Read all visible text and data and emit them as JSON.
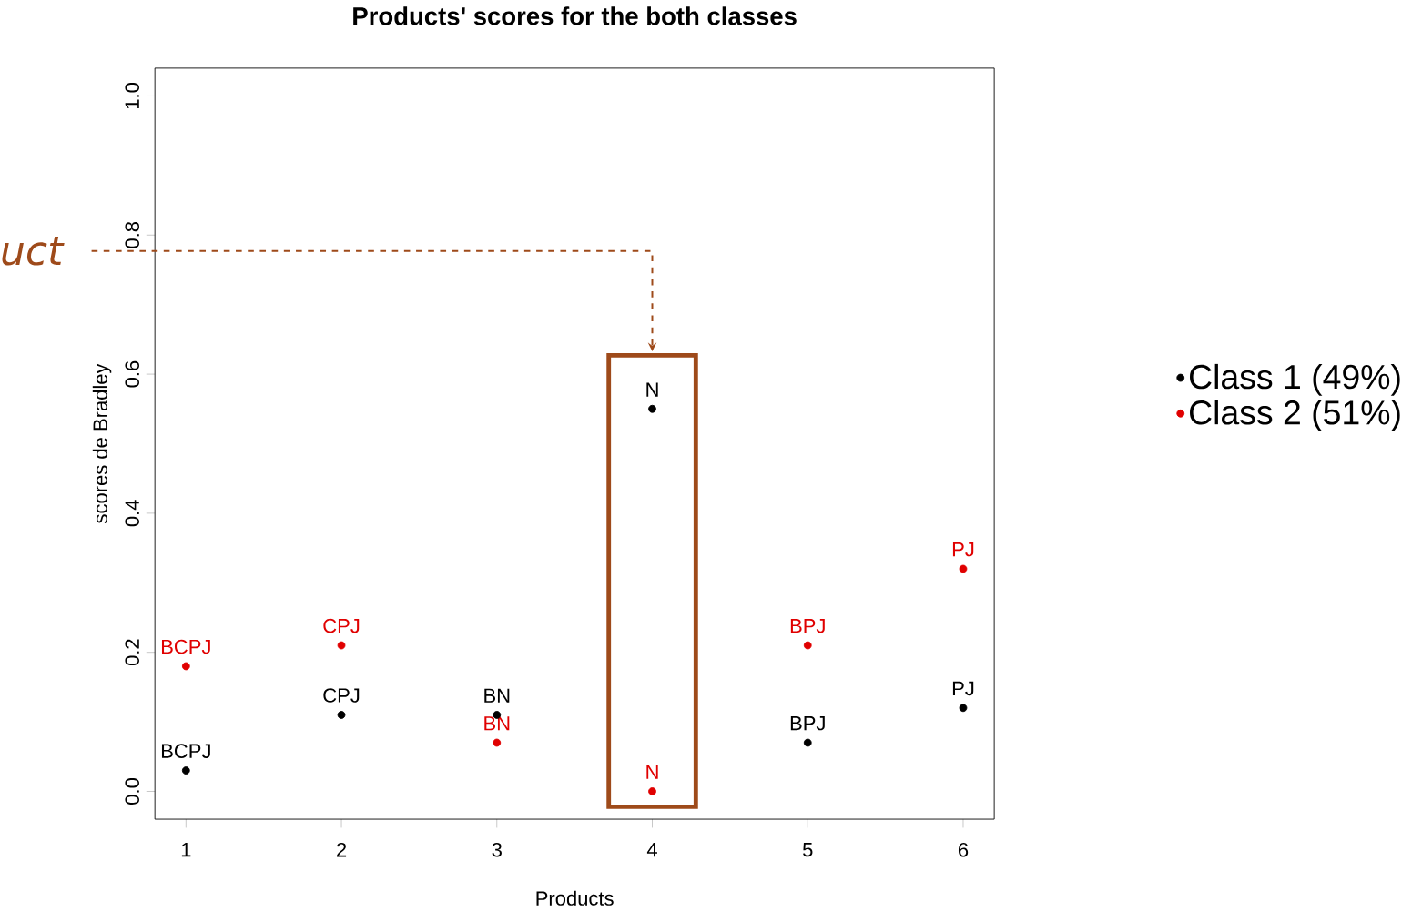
{
  "chart_data": {
    "type": "scatter",
    "title": "Products' scores for the both classes",
    "xlabel": "Products",
    "ylabel": "scores de Bradley",
    "x": [
      1,
      2,
      3,
      4,
      5,
      6
    ],
    "series": [
      {
        "name": "Class 1 (49%)",
        "color": "#000000",
        "values": [
          0.03,
          0.11,
          0.11,
          0.55,
          0.07,
          0.12
        ]
      },
      {
        "name": "Class 2 (51%)",
        "color": "#e00000",
        "values": [
          0.18,
          0.21,
          0.07,
          0.0,
          0.21,
          0.32
        ]
      }
    ],
    "xlim": [
      0.8,
      6.2
    ],
    "xticks": [
      1,
      2,
      3,
      4,
      5,
      6
    ],
    "ylim": [
      -0.04,
      1.04
    ],
    "yticks": [
      {
        "value": 0,
        "label": "0.0"
      },
      {
        "value": 0.2,
        "label": "0.2"
      },
      {
        "value": 0.4,
        "label": "0.4"
      },
      {
        "value": 0.6,
        "label": "0.6"
      },
      {
        "value": 0.8,
        "label": "0.8"
      },
      {
        "value": 1.0,
        "label": "1.0"
      }
    ],
    "marker": "circle",
    "grid": false,
    "legend": "right",
    "annotations": [
      {
        "text": "BCPJ",
        "x": 1,
        "y": 0.03
      },
      {
        "text": "CPJ",
        "x": 2,
        "y": 0.11
      },
      {
        "text": "BN",
        "x": 3,
        "y": 0.11
      },
      {
        "text": "N",
        "x": 4,
        "y": 0.55
      },
      {
        "text": "BPJ",
        "x": 5,
        "y": 0.07
      },
      {
        "text": "PJ",
        "x": 6,
        "y": 0.12
      },
      {
        "text": "BCPJ",
        "x": 1,
        "y": 0.18
      },
      {
        "text": "CPJ",
        "x": 2,
        "y": 0.21
      },
      {
        "text": "BN",
        "x": 3,
        "y": 0.07
      },
      {
        "text": "N",
        "x": 4,
        "y": 0.0
      },
      {
        "text": "BPJ",
        "x": 5,
        "y": 0.21
      },
      {
        "text": "PJ",
        "x": 6,
        "y": 0.32
      },
      "uct"
    ]
  }
}
